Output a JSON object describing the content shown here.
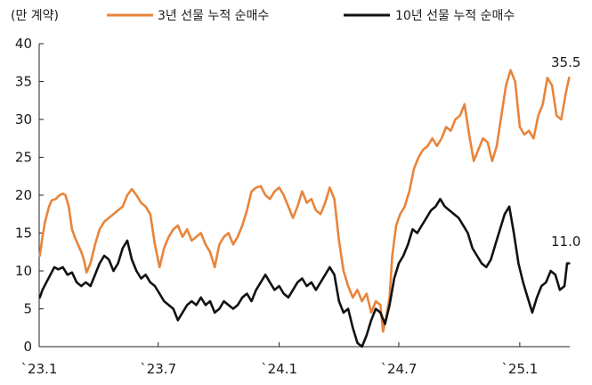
{
  "chart_data": {
    "type": "line",
    "unit_label": "(만 계약)",
    "x_ticks": [
      "`23.1",
      "`23.7",
      "`24.1",
      "`24.7",
      "`25.1"
    ],
    "y_ticks": [
      "0",
      "5",
      "10",
      "15",
      "20",
      "25",
      "30",
      "35",
      "40"
    ],
    "ylim": [
      0,
      40
    ],
    "grid": false,
    "legend_position": "top",
    "series": [
      {
        "name": "3년 선물 누적 순매수",
        "color": "#e8843a",
        "end_label": "35.5",
        "points": [
          [
            "2023-01-02",
            12.0
          ],
          [
            "2023-01-06",
            14.5
          ],
          [
            "2023-01-10",
            16.5
          ],
          [
            "2023-01-16",
            18.5
          ],
          [
            "2023-01-20",
            19.3
          ],
          [
            "2023-01-26",
            19.5
          ],
          [
            "2023-02-01",
            20.0
          ],
          [
            "2023-02-06",
            20.2
          ],
          [
            "2023-02-10",
            20.0
          ],
          [
            "2023-02-15",
            18.5
          ],
          [
            "2023-02-20",
            15.5
          ],
          [
            "2023-02-24",
            14.5
          ],
          [
            "2023-03-01",
            13.5
          ],
          [
            "2023-03-06",
            12.5
          ],
          [
            "2023-03-10",
            11.5
          ],
          [
            "2023-03-14",
            9.8
          ],
          [
            "2023-03-20",
            11.0
          ],
          [
            "2023-03-27",
            13.5
          ],
          [
            "2023-04-03",
            15.5
          ],
          [
            "2023-04-10",
            16.5
          ],
          [
            "2023-04-17",
            17.0
          ],
          [
            "2023-04-24",
            17.5
          ],
          [
            "2023-05-01",
            18.0
          ],
          [
            "2023-05-08",
            18.5
          ],
          [
            "2023-05-15",
            20.0
          ],
          [
            "2023-05-22",
            20.8
          ],
          [
            "2023-05-29",
            20.0
          ],
          [
            "2023-06-05",
            19.0
          ],
          [
            "2023-06-12",
            18.5
          ],
          [
            "2023-06-19",
            17.5
          ],
          [
            "2023-06-26",
            13.5
          ],
          [
            "2023-07-03",
            10.5
          ],
          [
            "2023-07-10",
            13.0
          ],
          [
            "2023-07-17",
            14.5
          ],
          [
            "2023-07-24",
            15.5
          ],
          [
            "2023-07-31",
            16.0
          ],
          [
            "2023-08-07",
            14.5
          ],
          [
            "2023-08-14",
            15.5
          ],
          [
            "2023-08-21",
            14.0
          ],
          [
            "2023-08-28",
            14.5
          ],
          [
            "2023-09-04",
            15.0
          ],
          [
            "2023-09-11",
            13.5
          ],
          [
            "2023-09-18",
            12.5
          ],
          [
            "2023-09-25",
            10.5
          ],
          [
            "2023-10-02",
            13.5
          ],
          [
            "2023-10-09",
            14.5
          ],
          [
            "2023-10-16",
            15.0
          ],
          [
            "2023-10-23",
            13.5
          ],
          [
            "2023-10-30",
            14.5
          ],
          [
            "2023-11-06",
            16.0
          ],
          [
            "2023-11-13",
            18.0
          ],
          [
            "2023-11-20",
            20.5
          ],
          [
            "2023-11-27",
            21.0
          ],
          [
            "2023-12-04",
            21.2
          ],
          [
            "2023-12-11",
            20.0
          ],
          [
            "2023-12-18",
            19.5
          ],
          [
            "2023-12-25",
            20.5
          ],
          [
            "2024-01-01",
            21.0
          ],
          [
            "2024-01-08",
            20.0
          ],
          [
            "2024-01-15",
            18.5
          ],
          [
            "2024-01-22",
            17.0
          ],
          [
            "2024-01-29",
            18.5
          ],
          [
            "2024-02-05",
            20.5
          ],
          [
            "2024-02-12",
            19.0
          ],
          [
            "2024-02-19",
            19.5
          ],
          [
            "2024-02-26",
            18.0
          ],
          [
            "2024-03-04",
            17.5
          ],
          [
            "2024-03-11",
            19.0
          ],
          [
            "2024-03-18",
            21.0
          ],
          [
            "2024-03-25",
            19.5
          ],
          [
            "2024-04-01",
            14.0
          ],
          [
            "2024-04-08",
            10.0
          ],
          [
            "2024-04-15",
            8.0
          ],
          [
            "2024-04-22",
            6.5
          ],
          [
            "2024-04-29",
            7.5
          ],
          [
            "2024-05-06",
            6.0
          ],
          [
            "2024-05-13",
            7.0
          ],
          [
            "2024-05-20",
            4.5
          ],
          [
            "2024-05-27",
            6.0
          ],
          [
            "2024-06-03",
            5.5
          ],
          [
            "2024-06-07",
            2.0
          ],
          [
            "2024-06-11",
            3.5
          ],
          [
            "2024-06-17",
            6.5
          ],
          [
            "2024-06-21",
            12.0
          ],
          [
            "2024-06-27",
            16.0
          ],
          [
            "2024-07-03",
            17.5
          ],
          [
            "2024-07-10",
            18.5
          ],
          [
            "2024-07-17",
            20.5
          ],
          [
            "2024-07-24",
            23.5
          ],
          [
            "2024-07-31",
            25.0
          ],
          [
            "2024-08-07",
            26.0
          ],
          [
            "2024-08-14",
            26.5
          ],
          [
            "2024-08-21",
            27.5
          ],
          [
            "2024-08-28",
            26.5
          ],
          [
            "2024-09-04",
            27.5
          ],
          [
            "2024-09-11",
            29.0
          ],
          [
            "2024-09-18",
            28.5
          ],
          [
            "2024-09-25",
            30.0
          ],
          [
            "2024-10-02",
            30.5
          ],
          [
            "2024-10-09",
            32.0
          ],
          [
            "2024-10-16",
            28.0
          ],
          [
            "2024-10-23",
            24.5
          ],
          [
            "2024-10-30",
            26.0
          ],
          [
            "2024-11-06",
            27.5
          ],
          [
            "2024-11-13",
            27.0
          ],
          [
            "2024-11-20",
            24.5
          ],
          [
            "2024-11-27",
            26.5
          ],
          [
            "2024-12-04",
            30.5
          ],
          [
            "2024-12-11",
            34.5
          ],
          [
            "2024-12-18",
            36.5
          ],
          [
            "2024-12-25",
            35.0
          ],
          [
            "2025-01-01",
            29.0
          ],
          [
            "2025-01-08",
            28.0
          ],
          [
            "2025-01-15",
            28.5
          ],
          [
            "2025-01-22",
            27.5
          ],
          [
            "2025-01-29",
            30.5
          ],
          [
            "2025-02-05",
            32.0
          ],
          [
            "2025-02-12",
            35.5
          ],
          [
            "2025-02-19",
            34.5
          ],
          [
            "2025-02-26",
            30.5
          ],
          [
            "2025-03-05",
            30.0
          ],
          [
            "2025-03-12",
            33.5
          ],
          [
            "2025-03-17",
            35.5
          ]
        ]
      },
      {
        "name": "10년 선물 누적 순매수",
        "color": "#111111",
        "end_label": "11.0",
        "points": [
          [
            "2023-01-02",
            6.5
          ],
          [
            "2023-01-06",
            7.5
          ],
          [
            "2023-01-12",
            8.5
          ],
          [
            "2023-01-18",
            9.5
          ],
          [
            "2023-01-24",
            10.5
          ],
          [
            "2023-01-30",
            10.2
          ],
          [
            "2023-02-06",
            10.5
          ],
          [
            "2023-02-13",
            9.5
          ],
          [
            "2023-02-20",
            9.8
          ],
          [
            "2023-02-27",
            8.5
          ],
          [
            "2023-03-06",
            8.0
          ],
          [
            "2023-03-13",
            8.5
          ],
          [
            "2023-03-20",
            8.0
          ],
          [
            "2023-03-27",
            9.5
          ],
          [
            "2023-04-03",
            11.0
          ],
          [
            "2023-04-10",
            12.0
          ],
          [
            "2023-04-17",
            11.5
          ],
          [
            "2023-04-24",
            10.0
          ],
          [
            "2023-05-01",
            11.0
          ],
          [
            "2023-05-08",
            13.0
          ],
          [
            "2023-05-15",
            14.0
          ],
          [
            "2023-05-22",
            11.5
          ],
          [
            "2023-05-29",
            10.0
          ],
          [
            "2023-06-05",
            9.0
          ],
          [
            "2023-06-12",
            9.5
          ],
          [
            "2023-06-19",
            8.5
          ],
          [
            "2023-06-26",
            8.0
          ],
          [
            "2023-07-03",
            7.0
          ],
          [
            "2023-07-10",
            6.0
          ],
          [
            "2023-07-17",
            5.5
          ],
          [
            "2023-07-24",
            5.0
          ],
          [
            "2023-07-31",
            3.5
          ],
          [
            "2023-08-07",
            4.5
          ],
          [
            "2023-08-14",
            5.5
          ],
          [
            "2023-08-21",
            6.0
          ],
          [
            "2023-08-28",
            5.5
          ],
          [
            "2023-09-04",
            6.5
          ],
          [
            "2023-09-11",
            5.5
          ],
          [
            "2023-09-18",
            6.0
          ],
          [
            "2023-09-25",
            4.5
          ],
          [
            "2023-10-02",
            5.0
          ],
          [
            "2023-10-09",
            6.0
          ],
          [
            "2023-10-16",
            5.5
          ],
          [
            "2023-10-23",
            5.0
          ],
          [
            "2023-10-30",
            5.5
          ],
          [
            "2023-11-06",
            6.5
          ],
          [
            "2023-11-13",
            7.0
          ],
          [
            "2023-11-20",
            6.0
          ],
          [
            "2023-11-27",
            7.5
          ],
          [
            "2023-12-04",
            8.5
          ],
          [
            "2023-12-11",
            9.5
          ],
          [
            "2023-12-18",
            8.5
          ],
          [
            "2023-12-25",
            7.5
          ],
          [
            "2024-01-01",
            8.0
          ],
          [
            "2024-01-08",
            7.0
          ],
          [
            "2024-01-15",
            6.5
          ],
          [
            "2024-01-22",
            7.5
          ],
          [
            "2024-01-29",
            8.5
          ],
          [
            "2024-02-05",
            9.0
          ],
          [
            "2024-02-12",
            8.0
          ],
          [
            "2024-02-19",
            8.5
          ],
          [
            "2024-02-26",
            7.5
          ],
          [
            "2024-03-04",
            8.5
          ],
          [
            "2024-03-11",
            9.5
          ],
          [
            "2024-03-18",
            10.5
          ],
          [
            "2024-03-25",
            9.5
          ],
          [
            "2024-04-01",
            6.0
          ],
          [
            "2024-04-08",
            4.5
          ],
          [
            "2024-04-15",
            5.0
          ],
          [
            "2024-04-22",
            2.5
          ],
          [
            "2024-04-29",
            0.5
          ],
          [
            "2024-05-06",
            0.0
          ],
          [
            "2024-05-13",
            1.5
          ],
          [
            "2024-05-20",
            3.5
          ],
          [
            "2024-05-27",
            5.0
          ],
          [
            "2024-06-03",
            4.5
          ],
          [
            "2024-06-10",
            3.0
          ],
          [
            "2024-06-17",
            5.5
          ],
          [
            "2024-06-24",
            9.0
          ],
          [
            "2024-07-01",
            11.0
          ],
          [
            "2024-07-08",
            12.0
          ],
          [
            "2024-07-15",
            13.5
          ],
          [
            "2024-07-22",
            15.5
          ],
          [
            "2024-07-29",
            15.0
          ],
          [
            "2024-08-05",
            16.0
          ],
          [
            "2024-08-12",
            17.0
          ],
          [
            "2024-08-19",
            18.0
          ],
          [
            "2024-08-26",
            18.5
          ],
          [
            "2024-09-02",
            19.5
          ],
          [
            "2024-09-09",
            18.5
          ],
          [
            "2024-09-16",
            18.0
          ],
          [
            "2024-09-23",
            17.5
          ],
          [
            "2024-09-30",
            17.0
          ],
          [
            "2024-10-07",
            16.0
          ],
          [
            "2024-10-14",
            15.0
          ],
          [
            "2024-10-21",
            13.0
          ],
          [
            "2024-10-28",
            12.0
          ],
          [
            "2024-11-04",
            11.0
          ],
          [
            "2024-11-11",
            10.5
          ],
          [
            "2024-11-18",
            11.5
          ],
          [
            "2024-11-25",
            13.5
          ],
          [
            "2024-12-02",
            15.5
          ],
          [
            "2024-12-09",
            17.5
          ],
          [
            "2024-12-16",
            18.5
          ],
          [
            "2024-12-23",
            15.0
          ],
          [
            "2024-12-30",
            11.0
          ],
          [
            "2025-01-06",
            8.5
          ],
          [
            "2025-01-13",
            6.5
          ],
          [
            "2025-01-20",
            4.5
          ],
          [
            "2025-01-27",
            6.5
          ],
          [
            "2025-02-03",
            8.0
          ],
          [
            "2025-02-10",
            8.5
          ],
          [
            "2025-02-17",
            10.0
          ],
          [
            "2025-02-24",
            9.5
          ],
          [
            "2025-03-03",
            7.5
          ],
          [
            "2025-03-10",
            8.0
          ],
          [
            "2025-03-14",
            11.0
          ],
          [
            "2025-03-17",
            11.0
          ]
        ]
      }
    ]
  }
}
